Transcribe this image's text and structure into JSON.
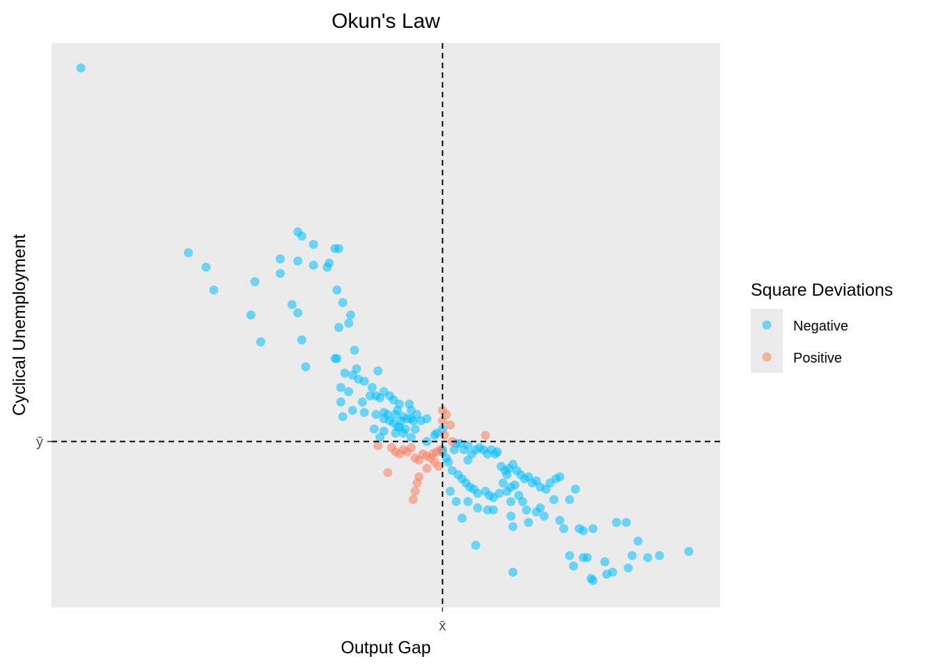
{
  "chart_data": {
    "type": "scatter",
    "title": "Okun's Law",
    "xlabel": "Output Gap",
    "ylabel": "Cyclical Unemployment",
    "x_ref_label": "x̄",
    "y_ref_label": "ȳ",
    "x_mean": 0,
    "y_mean": 0,
    "xlim": [
      -2.0,
      1.42
    ],
    "ylim": [
      -0.8,
      1.92
    ],
    "grid": false,
    "legend": {
      "title": "Square Deviations",
      "position": "right",
      "entries": [
        {
          "label": "Negative",
          "color": "#00bfff"
        },
        {
          "label": "Positive",
          "color": "#fa8060"
        }
      ]
    },
    "series": [
      {
        "name": "Negative",
        "color": "#00bfff",
        "points": [
          [
            -1.85,
            1.8
          ],
          [
            -1.3,
            0.91
          ],
          [
            -1.21,
            0.84
          ],
          [
            -1.17,
            0.73
          ],
          [
            -0.96,
            0.77
          ],
          [
            -0.98,
            0.61
          ],
          [
            -0.93,
            0.48
          ],
          [
            -0.83,
            0.88
          ],
          [
            -0.83,
            0.81
          ],
          [
            -0.74,
            1.01
          ],
          [
            -0.72,
            0.99
          ],
          [
            -0.74,
            0.87
          ],
          [
            -0.66,
            0.95
          ],
          [
            -0.66,
            0.85
          ],
          [
            -0.59,
            0.84
          ],
          [
            -0.58,
            0.86
          ],
          [
            -0.55,
            0.93
          ],
          [
            -0.53,
            0.93
          ],
          [
            -0.77,
            0.66
          ],
          [
            -0.74,
            0.62
          ],
          [
            -0.72,
            0.49
          ],
          [
            -0.7,
            0.36
          ],
          [
            -0.54,
            0.73
          ],
          [
            -0.51,
            0.67
          ],
          [
            -0.47,
            0.61
          ],
          [
            -0.48,
            0.57
          ],
          [
            -0.53,
            0.55
          ],
          [
            -0.45,
            0.44
          ],
          [
            -0.54,
            0.4
          ],
          [
            -0.55,
            0.4
          ],
          [
            -0.5,
            0.33
          ],
          [
            -0.44,
            0.35
          ],
          [
            -0.46,
            0.32
          ],
          [
            -0.52,
            0.26
          ],
          [
            -0.48,
            0.24
          ],
          [
            -0.43,
            0.3
          ],
          [
            -0.4,
            0.29
          ],
          [
            -0.36,
            0.26
          ],
          [
            -0.33,
            0.34
          ],
          [
            -0.3,
            0.24
          ],
          [
            -0.32,
            0.21
          ],
          [
            -0.27,
            0.22
          ],
          [
            -0.25,
            0.2
          ],
          [
            -0.22,
            0.18
          ],
          [
            -0.17,
            0.18
          ],
          [
            -0.23,
            0.15
          ],
          [
            -0.16,
            0.15
          ],
          [
            -0.13,
            0.13
          ],
          [
            -0.16,
            0.11
          ],
          [
            -0.2,
            0.12
          ],
          [
            -0.25,
            0.09
          ],
          [
            -0.34,
            0.22
          ],
          [
            -0.37,
            0.22
          ],
          [
            -0.41,
            0.19
          ],
          [
            -0.46,
            0.15
          ],
          [
            -0.52,
            0.19
          ],
          [
            -0.51,
            0.12
          ],
          [
            -0.4,
            0.14
          ],
          [
            -0.34,
            0.13
          ],
          [
            -0.3,
            0.14
          ],
          [
            -0.28,
            0.13
          ],
          [
            -0.24,
            0.13
          ],
          [
            -0.21,
            0.1
          ],
          [
            -0.18,
            0.11
          ],
          [
            -0.15,
            0.1
          ],
          [
            -0.11,
            0.1
          ],
          [
            -0.08,
            0.11
          ],
          [
            -0.3,
            0.11
          ],
          [
            -0.27,
            0.1
          ],
          [
            -0.23,
            0.07
          ],
          [
            -0.19,
            0.06
          ],
          [
            -0.14,
            0.06
          ],
          [
            -0.16,
            0.02
          ],
          [
            -0.24,
            0.04
          ],
          [
            -0.3,
            0.05
          ],
          [
            -0.35,
            0.06
          ],
          [
            -0.32,
            0.02
          ],
          [
            -0.22,
            0.07
          ],
          [
            -0.2,
            0.04
          ],
          [
            -0.08,
            0.0
          ],
          [
            -0.04,
            0.03
          ],
          [
            -0.03,
            0.04
          ],
          [
            0.0,
            0.06
          ],
          [
            0.0,
            -0.05
          ],
          [
            0.0,
            -0.04
          ],
          [
            0.02,
            -0.08
          ],
          [
            0.06,
            -0.04
          ],
          [
            0.07,
            -0.01
          ],
          [
            0.09,
            -0.01
          ],
          [
            0.11,
            -0.04
          ],
          [
            0.13,
            -0.02
          ],
          [
            0.15,
            -0.06
          ],
          [
            0.13,
            -0.09
          ],
          [
            0.17,
            -0.04
          ],
          [
            0.19,
            -0.03
          ],
          [
            0.21,
            -0.04
          ],
          [
            0.23,
            -0.06
          ],
          [
            0.25,
            -0.04
          ],
          [
            0.27,
            -0.06
          ],
          [
            0.28,
            -0.05
          ],
          [
            0.3,
            -0.12
          ],
          [
            0.32,
            -0.14
          ],
          [
            0.33,
            -0.16
          ],
          [
            0.34,
            -0.13
          ],
          [
            0.36,
            -0.11
          ],
          [
            0.38,
            -0.14
          ],
          [
            0.4,
            -0.16
          ],
          [
            0.42,
            -0.18
          ],
          [
            0.44,
            -0.17
          ],
          [
            0.46,
            -0.2
          ],
          [
            0.48,
            -0.19
          ],
          [
            0.5,
            -0.22
          ],
          [
            0.53,
            -0.23
          ],
          [
            0.55,
            -0.2
          ],
          [
            0.58,
            -0.18
          ],
          [
            0.6,
            -0.17
          ],
          [
            0.03,
            -0.1
          ],
          [
            0.05,
            -0.14
          ],
          [
            0.08,
            -0.16
          ],
          [
            0.1,
            -0.18
          ],
          [
            0.12,
            -0.2
          ],
          [
            0.14,
            -0.22
          ],
          [
            0.16,
            -0.23
          ],
          [
            0.18,
            -0.25
          ],
          [
            0.22,
            -0.24
          ],
          [
            0.24,
            -0.26
          ],
          [
            0.26,
            -0.27
          ],
          [
            0.29,
            -0.25
          ],
          [
            0.31,
            -0.2
          ],
          [
            0.33,
            -0.24
          ],
          [
            0.35,
            -0.22
          ],
          [
            0.37,
            -0.21
          ],
          [
            0.39,
            -0.26
          ],
          [
            0.41,
            -0.29
          ],
          [
            0.35,
            -0.29
          ],
          [
            0.23,
            -0.33
          ],
          [
            0.18,
            -0.32
          ],
          [
            0.13,
            -0.29
          ],
          [
            0.07,
            -0.29
          ],
          [
            0.04,
            -0.24
          ],
          [
            0.26,
            -0.33
          ],
          [
            0.1,
            -0.37
          ],
          [
            0.35,
            -0.36
          ],
          [
            0.36,
            -0.41
          ],
          [
            0.43,
            -0.33
          ],
          [
            0.44,
            -0.39
          ],
          [
            0.48,
            -0.34
          ],
          [
            0.5,
            -0.32
          ],
          [
            0.52,
            -0.36
          ],
          [
            0.57,
            -0.28
          ],
          [
            0.6,
            -0.38
          ],
          [
            0.62,
            -0.42
          ],
          [
            0.65,
            -0.28
          ],
          [
            0.68,
            -0.23
          ],
          [
            0.7,
            -0.42
          ],
          [
            0.72,
            -0.43
          ],
          [
            0.77,
            -0.42
          ],
          [
            0.65,
            -0.55
          ],
          [
            0.67,
            -0.6
          ],
          [
            0.72,
            -0.56
          ],
          [
            0.74,
            -0.56
          ],
          [
            0.76,
            -0.66
          ],
          [
            0.77,
            -0.67
          ],
          [
            0.83,
            -0.58
          ],
          [
            0.84,
            -0.64
          ],
          [
            0.87,
            -0.63
          ],
          [
            0.89,
            -0.39
          ],
          [
            0.94,
            -0.39
          ],
          [
            0.95,
            -0.61
          ],
          [
            0.97,
            -0.55
          ],
          [
            1.0,
            -0.48
          ],
          [
            1.05,
            -0.56
          ],
          [
            1.11,
            -0.55
          ],
          [
            1.26,
            -0.53
          ],
          [
            0.17,
            -0.5
          ],
          [
            0.36,
            -0.63
          ]
        ]
      },
      {
        "name": "Positive",
        "color": "#fa8060",
        "points": [
          [
            -0.33,
            -0.02
          ],
          [
            -0.26,
            -0.03
          ],
          [
            -0.24,
            -0.05
          ],
          [
            -0.22,
            -0.06
          ],
          [
            -0.2,
            -0.04
          ],
          [
            -0.18,
            -0.05
          ],
          [
            -0.16,
            -0.03
          ],
          [
            -0.14,
            -0.08
          ],
          [
            -0.12,
            -0.09
          ],
          [
            -0.1,
            -0.06
          ],
          [
            -0.08,
            -0.07
          ],
          [
            -0.06,
            -0.08
          ],
          [
            -0.04,
            -0.1
          ],
          [
            -0.02,
            -0.12
          ],
          [
            -0.05,
            -0.06
          ],
          [
            -0.03,
            -0.05
          ],
          [
            -0.01,
            -0.04
          ],
          [
            -0.08,
            -0.13
          ],
          [
            -0.12,
            -0.17
          ],
          [
            -0.13,
            -0.2
          ],
          [
            -0.14,
            -0.24
          ],
          [
            -0.15,
            -0.28
          ],
          [
            -0.28,
            -0.15
          ],
          [
            0.0,
            0.15
          ],
          [
            0.02,
            0.13
          ],
          [
            0.04,
            0.08
          ],
          [
            0.0,
            0.1
          ],
          [
            0.01,
            0.03
          ],
          [
            0.05,
            0.0
          ],
          [
            0.22,
            0.03
          ]
        ]
      }
    ]
  }
}
